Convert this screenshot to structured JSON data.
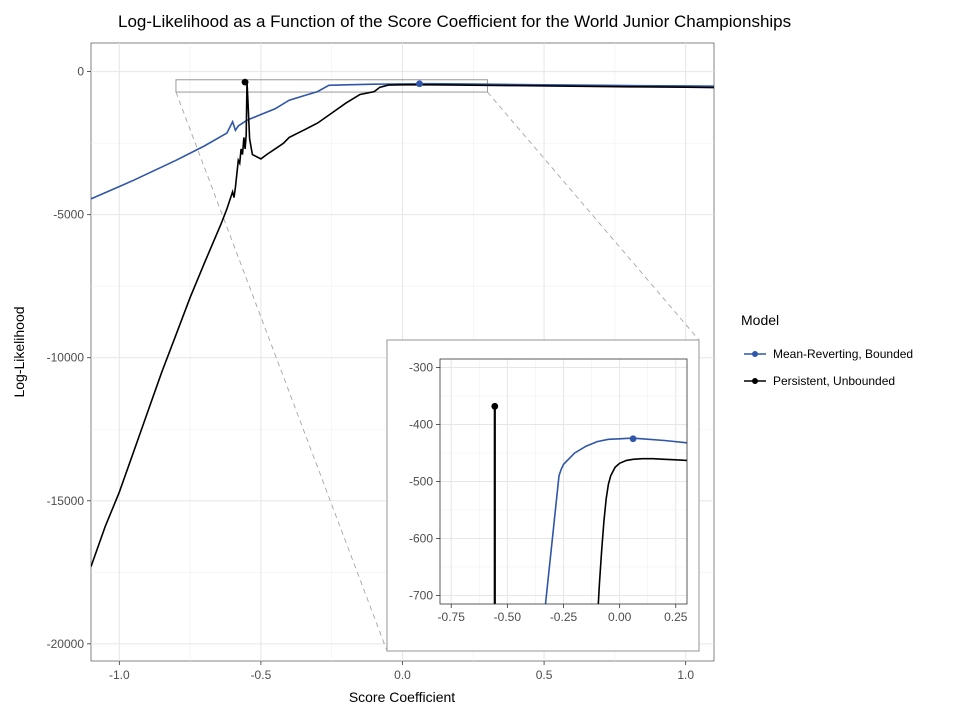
{
  "chart_data": {
    "type": "line",
    "title": "Log-Likelihood as a Function of the Score Coefficient for the World Junior Championships",
    "xlabel": "Score Coefficient",
    "ylabel": "Log-Likelihood",
    "xlim": [
      -1.1,
      1.1
    ],
    "ylim": [
      -20600,
      1000
    ],
    "x_ticks": [
      -1.0,
      -0.5,
      0.0,
      0.5,
      1.0
    ],
    "x_tick_labels": [
      "-1.0",
      "-0.5",
      "0.0",
      "0.5",
      "1.0"
    ],
    "y_ticks": [
      0,
      -5000,
      -10000,
      -15000,
      -20000
    ],
    "y_tick_labels": [
      "0",
      "-5000",
      "-10000",
      "-15000",
      "-20000"
    ],
    "grid": true,
    "legend": {
      "title": "Model",
      "position": "right",
      "entries": [
        "Mean-Reverting, Bounded",
        "Persistent, Unbounded"
      ]
    },
    "colors": {
      "mean_reverting": "#2f56a8",
      "persistent": "#000000"
    },
    "series": [
      {
        "name": "Mean-Reverting, Bounded",
        "color": "#2f56a8",
        "x": [
          -1.1,
          -0.95,
          -0.8,
          -0.7,
          -0.62,
          -0.6,
          -0.59,
          -0.58,
          -0.55,
          -0.5,
          -0.45,
          -0.4,
          -0.35,
          -0.3,
          -0.26,
          -0.2,
          -0.1,
          0.0,
          0.05,
          0.1,
          0.2,
          0.4,
          0.6,
          0.8,
          1.0,
          1.1
        ],
        "y": [
          -4450,
          -3800,
          -3100,
          -2600,
          -2150,
          -1750,
          -2050,
          -1900,
          -1700,
          -1500,
          -1300,
          -1000,
          -850,
          -700,
          -480,
          -460,
          -440,
          -428,
          -425,
          -424,
          -430,
          -450,
          -470,
          -490,
          -500,
          -510
        ],
        "optimum": {
          "x": 0.06,
          "y": -425
        }
      },
      {
        "name": "Persistent, Unbounded",
        "color": "#000000",
        "x": [
          -1.1,
          -1.05,
          -1.0,
          -0.95,
          -0.9,
          -0.85,
          -0.8,
          -0.75,
          -0.7,
          -0.67,
          -0.64,
          -0.62,
          -0.6,
          -0.595,
          -0.59,
          -0.58,
          -0.575,
          -0.57,
          -0.565,
          -0.56,
          -0.556,
          -0.552,
          -0.549,
          -0.546,
          -0.54,
          -0.53,
          -0.5,
          -0.48,
          -0.45,
          -0.42,
          -0.4,
          -0.35,
          -0.3,
          -0.25,
          -0.2,
          -0.15,
          -0.1,
          -0.08,
          -0.05,
          0.0,
          0.1,
          0.2,
          0.4,
          0.6,
          0.8,
          1.0,
          1.1
        ],
        "y": [
          -17300,
          -15900,
          -14700,
          -13300,
          -11900,
          -10500,
          -9200,
          -7900,
          -6700,
          -6000,
          -5300,
          -4800,
          -4200,
          -4400,
          -4050,
          -3100,
          -3200,
          -2700,
          -2900,
          -2300,
          -2700,
          -2200,
          -368,
          -1000,
          -2350,
          -2900,
          -3050,
          -2900,
          -2700,
          -2500,
          -2300,
          -2050,
          -1800,
          -1450,
          -1100,
          -800,
          -700,
          -550,
          -470,
          -462,
          -460,
          -470,
          -490,
          -510,
          -530,
          -545,
          -560
        ],
        "optimum": {
          "x": -0.556,
          "y": -368
        }
      }
    ],
    "inset": {
      "xlim": [
        -0.8,
        0.3
      ],
      "ylim": [
        -715,
        -285
      ],
      "x_ticks": [
        -0.75,
        -0.5,
        -0.25,
        0.0,
        0.25
      ],
      "x_tick_labels": [
        "-0.75",
        "-0.50",
        "-0.25",
        "0.00",
        "0.25"
      ],
      "y_ticks": [
        -300,
        -400,
        -500,
        -600,
        -700
      ],
      "y_tick_labels": [
        "-300",
        "-400",
        "-500",
        "-600",
        "-700"
      ],
      "series": [
        {
          "name": "Mean-Reverting, Bounded",
          "color": "#2f56a8",
          "x": [
            -0.33,
            -0.31,
            -0.29,
            -0.27,
            -0.26,
            -0.25,
            -0.2,
            -0.15,
            -0.1,
            -0.05,
            0.0,
            0.05,
            0.06,
            0.1,
            0.2,
            0.3
          ],
          "y": [
            -715,
            -640,
            -565,
            -490,
            -478,
            -470,
            -450,
            -438,
            -430,
            -426,
            -425,
            -424,
            -424,
            -425,
            -428,
            -432
          ]
        },
        {
          "name": "Persistent, Unbounded",
          "color": "#000000",
          "spike_x": -0.556,
          "spike_top": -368,
          "x": [
            -0.095,
            -0.09,
            -0.08,
            -0.07,
            -0.06,
            -0.05,
            -0.04,
            -0.02,
            0.0,
            0.03,
            0.06,
            0.1,
            0.15,
            0.2,
            0.25,
            0.3
          ],
          "y": [
            -715,
            -680,
            -620,
            -570,
            -530,
            -505,
            -490,
            -475,
            -468,
            -463,
            -461,
            -460,
            -460,
            -461,
            -462,
            -463
          ]
        }
      ]
    }
  }
}
